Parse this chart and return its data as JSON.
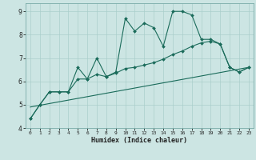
{
  "xlabel": "Humidex (Indice chaleur)",
  "xlim": [
    -0.5,
    23.5
  ],
  "ylim": [
    4,
    9.35
  ],
  "yticks": [
    4,
    5,
    6,
    7,
    8,
    9
  ],
  "xticks": [
    0,
    1,
    2,
    3,
    4,
    5,
    6,
    7,
    8,
    9,
    10,
    11,
    12,
    13,
    14,
    15,
    16,
    17,
    18,
    19,
    20,
    21,
    22,
    23
  ],
  "bg_color": "#cce5e3",
  "line_color": "#1a6b5a",
  "grid_color": "#aacfcc",
  "line1_x": [
    0,
    1,
    2,
    3,
    4,
    5,
    6,
    7,
    8,
    9,
    10,
    11,
    12,
    13,
    14,
    15,
    16,
    17,
    18,
    19,
    20,
    21,
    22,
    23
  ],
  "line1_y": [
    4.4,
    5.0,
    5.55,
    5.55,
    5.55,
    6.6,
    6.1,
    7.0,
    6.2,
    6.4,
    8.7,
    8.15,
    8.5,
    8.3,
    7.5,
    9.0,
    9.0,
    8.85,
    7.8,
    7.8,
    7.6,
    6.6,
    6.4,
    6.6
  ],
  "line2_x": [
    0,
    1,
    2,
    3,
    4,
    5,
    6,
    7,
    8,
    9,
    10,
    11,
    12,
    13,
    14,
    15,
    16,
    17,
    18,
    19,
    20,
    21,
    22,
    23
  ],
  "line2_y": [
    4.4,
    5.0,
    5.55,
    5.55,
    5.55,
    6.1,
    6.1,
    6.3,
    6.2,
    6.35,
    6.55,
    6.6,
    6.7,
    6.8,
    6.95,
    7.15,
    7.3,
    7.5,
    7.65,
    7.72,
    7.6,
    6.6,
    6.4,
    6.6
  ],
  "line3_x": [
    0,
    23
  ],
  "line3_y": [
    4.9,
    6.6
  ]
}
